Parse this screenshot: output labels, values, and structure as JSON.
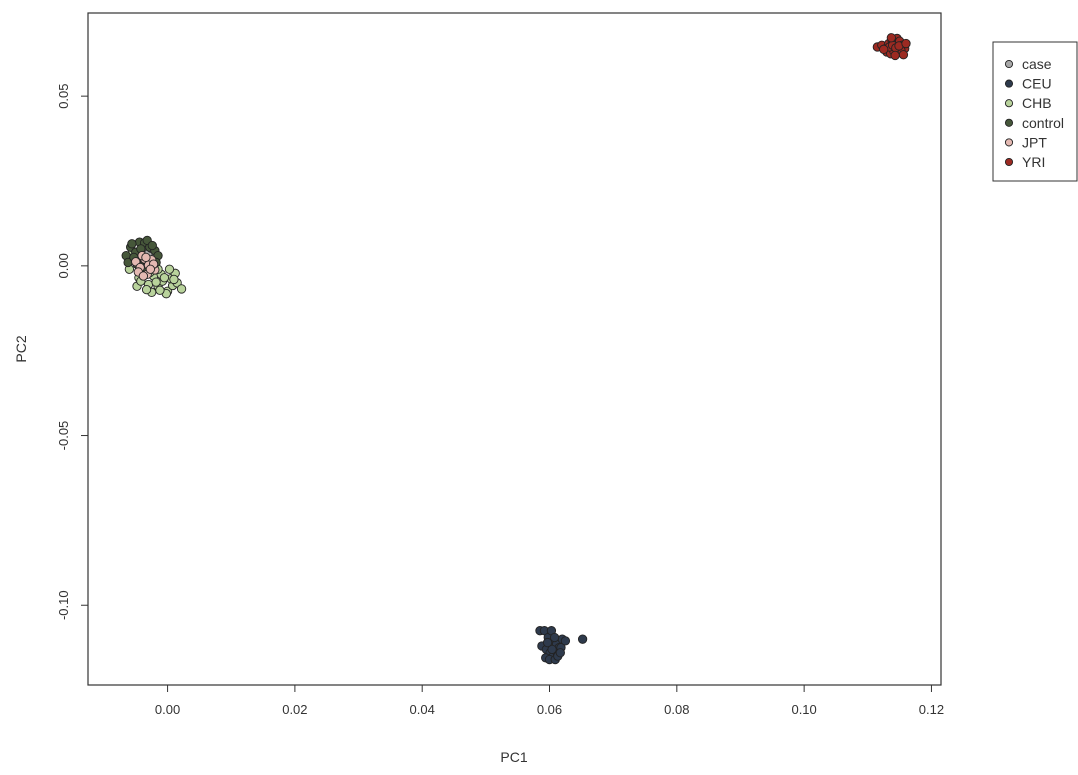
{
  "chart_data": {
    "type": "scatter",
    "title": "",
    "xlabel": "PC1",
    "ylabel": "PC2",
    "xlim": [
      -0.0125,
      0.1215
    ],
    "ylim": [
      -0.1235,
      0.0745
    ],
    "x_ticks": [
      0.0,
      0.02,
      0.04,
      0.06,
      0.08,
      0.1,
      0.12
    ],
    "x_tick_labels": [
      "0.00",
      "0.02",
      "0.04",
      "0.06",
      "0.08",
      "0.10",
      "0.12"
    ],
    "y_ticks": [
      -0.1,
      -0.05,
      0.0,
      0.05
    ],
    "y_tick_labels": [
      "-0.10",
      "-0.05",
      "0.00",
      "0.05"
    ],
    "grid": false,
    "legend_position": "outside-top-right",
    "series": [
      {
        "name": "case",
        "color": "#a8a8a8",
        "x": [
          -0.0045,
          -0.0038,
          -0.003,
          -0.0022,
          -0.0035,
          -0.0026,
          -0.0041,
          -0.0018,
          -0.0032,
          -0.0028,
          -0.0048,
          -0.002
        ],
        "y": [
          0.0042,
          0.0028,
          0.0036,
          0.0012,
          -0.0008,
          0.0052,
          0.0015,
          0.003,
          0.006,
          -0.0022,
          0.0025,
          -0.001
        ]
      },
      {
        "name": "CEU",
        "color": "#2e3a4c",
        "x": [
          0.0585,
          0.0592,
          0.0598,
          0.0603,
          0.0607,
          0.0611,
          0.0615,
          0.062,
          0.0588,
          0.0595,
          0.0601,
          0.0606,
          0.0612,
          0.0618,
          0.0625,
          0.0594,
          0.06,
          0.0609,
          0.0613,
          0.0604,
          0.0597,
          0.0617,
          0.0608,
          0.0652
        ],
        "y": [
          -0.1075,
          -0.1075,
          -0.1095,
          -0.1075,
          -0.1105,
          -0.1115,
          -0.1125,
          -0.11,
          -0.112,
          -0.113,
          -0.114,
          -0.115,
          -0.114,
          -0.1125,
          -0.1105,
          -0.1155,
          -0.116,
          -0.116,
          -0.115,
          -0.113,
          -0.111,
          -0.114,
          -0.1095,
          -0.11
        ]
      },
      {
        "name": "CHB",
        "color": "#b9d39c",
        "x": [
          -0.006,
          -0.0052,
          -0.0045,
          -0.0038,
          -0.003,
          -0.0022,
          -0.0015,
          -0.0008,
          0.0,
          0.0008,
          0.0015,
          0.0022,
          -0.0055,
          -0.004,
          -0.0025,
          -0.001,
          0.0005,
          0.0012,
          -0.0048,
          -0.0033,
          -0.0018,
          -0.0002,
          0.001,
          -0.0028,
          -0.0012,
          0.0003,
          -0.002,
          -0.0005,
          -0.0042,
          -0.0015
        ],
        "y": [
          -0.001,
          0.002,
          -0.0035,
          0.0005,
          -0.0055,
          -0.003,
          -0.006,
          -0.0045,
          -0.0075,
          -0.0058,
          -0.005,
          -0.0068,
          0.004,
          -0.0015,
          -0.0078,
          -0.0025,
          -0.0038,
          -0.0022,
          -0.006,
          -0.007,
          -0.0048,
          -0.0082,
          -0.004,
          -0.002,
          -0.0072,
          -0.001,
          0.0008,
          -0.0035,
          -0.0045,
          -0.001
        ]
      },
      {
        "name": "control",
        "color": "#46573a",
        "x": [
          -0.0065,
          -0.0058,
          -0.005,
          -0.0044,
          -0.0036,
          -0.0028,
          -0.002,
          -0.0015,
          -0.0062,
          -0.0053,
          -0.004,
          -0.0032,
          -0.0024,
          -0.0048,
          -0.0035,
          -0.0018,
          -0.0056,
          -0.0042
        ],
        "y": [
          0.003,
          0.0055,
          0.004,
          0.007,
          0.0068,
          0.0055,
          0.0045,
          0.003,
          0.001,
          0.0025,
          0.0015,
          0.0075,
          0.006,
          0.0005,
          -0.0005,
          0.001,
          0.0065,
          0.005
        ]
      },
      {
        "name": "JPT",
        "color": "#e4b9b2",
        "x": [
          -0.005,
          -0.0043,
          -0.0036,
          -0.0028,
          -0.002,
          -0.0032,
          -0.004,
          -0.0025,
          -0.0046,
          -0.003,
          -0.0038,
          -0.0022,
          -0.0034,
          -0.0027
        ],
        "y": [
          0.0012,
          -0.0005,
          0.002,
          0.0008,
          -0.0012,
          -0.0025,
          0.003,
          0.0018,
          -0.0018,
          0.0002,
          -0.003,
          0.0005,
          0.0025,
          -0.001
        ]
      },
      {
        "name": "YRI",
        "color": "#9c2a22",
        "x": [
          0.1115,
          0.1122,
          0.1128,
          0.1133,
          0.1138,
          0.1142,
          0.1146,
          0.115,
          0.1154,
          0.1158,
          0.113,
          0.1136,
          0.1141,
          0.1147,
          0.1152,
          0.1156,
          0.1134,
          0.1139,
          0.1144,
          0.1149,
          0.1125,
          0.116,
          0.1143,
          0.1137
        ],
        "y": [
          0.0645,
          0.065,
          0.064,
          0.0655,
          0.0665,
          0.066,
          0.067,
          0.0662,
          0.065,
          0.064,
          0.063,
          0.0625,
          0.0632,
          0.0628,
          0.0635,
          0.0622,
          0.0645,
          0.065,
          0.0642,
          0.0648,
          0.0638,
          0.0655,
          0.062,
          0.0672
        ]
      }
    ]
  }
}
